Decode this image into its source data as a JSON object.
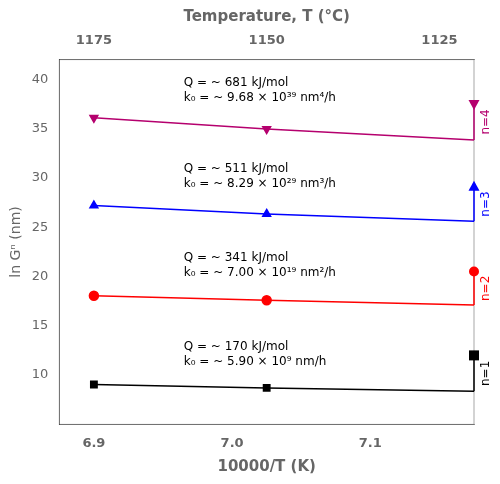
{
  "chart_data": {
    "type": "line",
    "xlabel": "10000/T (K)",
    "ylabel": "ln Gⁿ (nm)",
    "x2label": "Temperature, T (°C)",
    "xlim": [
      6.875,
      7.175
    ],
    "xticks": [
      6.9,
      {
        "value": 7.0,
        "label": "7.0"
      },
      7.1
    ],
    "x2lim": [
      6.875,
      7.175
    ],
    "x2ticks": [
      {
        "value": 6.9,
        "label": "1175"
      },
      {
        "value": 7.025,
        "label": "1150"
      },
      {
        "value": 7.15,
        "label": "1125"
      }
    ],
    "ylim": [
      5,
      42
    ],
    "yticks": [
      10,
      15,
      20,
      25,
      30,
      35,
      40
    ],
    "grid": false,
    "series": [
      {
        "name": "n=1",
        "color": "black",
        "marker": "square",
        "x": [
          6.9,
          7.025,
          7.175
        ],
        "values": [
          9.05,
          8.7,
          8.35
        ],
        "end_marker_y": 12.0
      },
      {
        "name": "n=2",
        "color": "red",
        "marker": "circle",
        "x": [
          6.9,
          7.025,
          7.175
        ],
        "values": [
          18.05,
          17.6,
          17.1
        ],
        "end_marker_y": 20.5
      },
      {
        "name": "n=3",
        "color": "blue",
        "marker": "triangle-up",
        "x": [
          6.9,
          7.025,
          7.175
        ],
        "values": [
          27.2,
          26.35,
          25.6
        ],
        "end_marker_y": 29.1
      },
      {
        "name": "n=4",
        "color": "#b5006e",
        "marker": "triangle-down",
        "x": [
          6.9,
          7.025,
          7.175
        ],
        "values": [
          36.1,
          34.95,
          33.85
        ],
        "end_marker_y": 37.5
      }
    ],
    "annotations": [
      {
        "text": "Q = ~ 170 kJ/mol\nk₀ = ~ 5.90 × 10⁹ nm/h",
        "x": 6.965,
        "y": 13.5
      },
      {
        "text": "Q = ~ 341 kJ/mol\nk₀ = ~ 7.00 × 10¹⁹ nm²/h",
        "x": 6.965,
        "y": 22.5
      },
      {
        "text": "Q = ~ 511 kJ/mol\nk₀ = ~ 8.29 × 10²⁹ nm³/h",
        "x": 6.965,
        "y": 31.5
      },
      {
        "text": "Q = ~ 681 kJ/mol\nk₀ = ~ 9.68 × 10³⁹ nm⁴/h",
        "x": 6.965,
        "y": 40.2
      }
    ]
  }
}
